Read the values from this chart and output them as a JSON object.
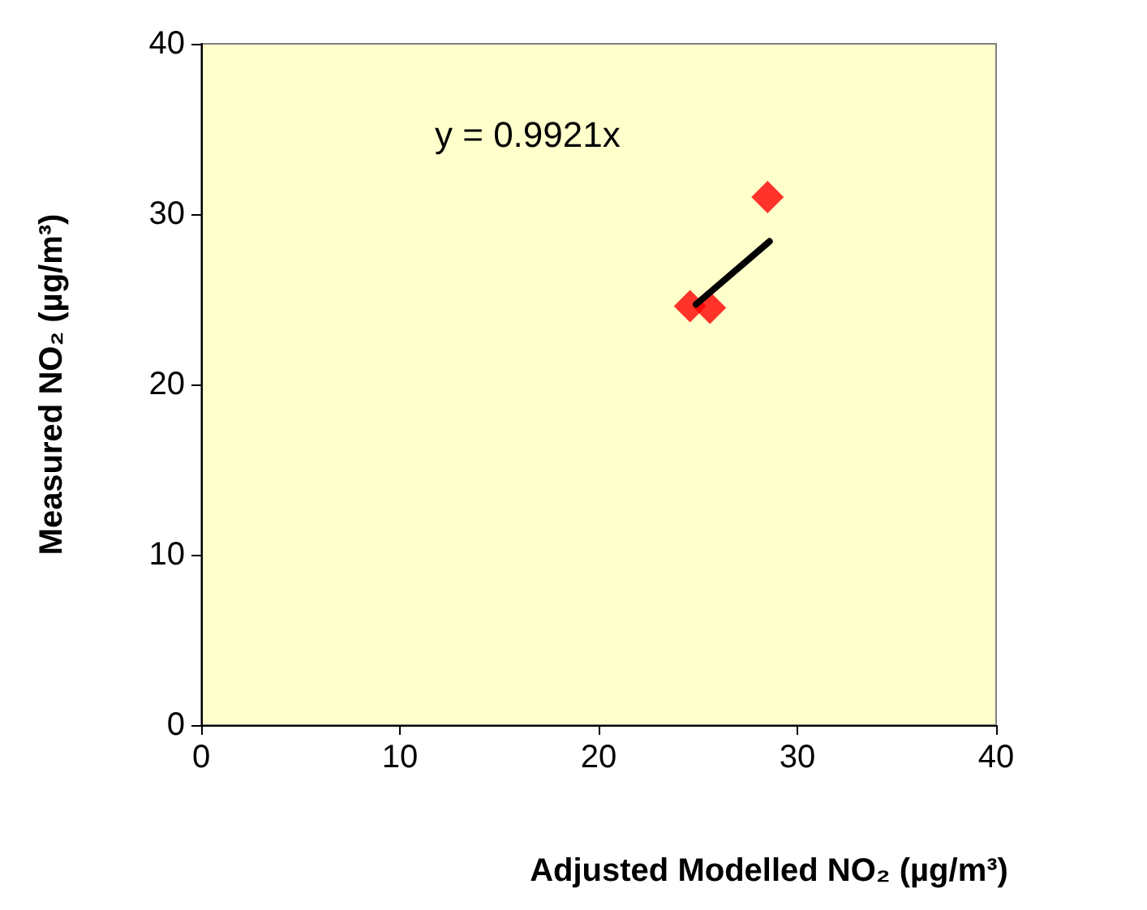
{
  "chart_data": {
    "type": "scatter",
    "xlabel": "Adjusted Modelled NO₂ (µg/m³)",
    "ylabel": "Measured NO₂ (µg/m³)",
    "annotations": [
      "y = 0.9921x"
    ],
    "xlim": [
      0,
      40
    ],
    "ylim": [
      0,
      40
    ],
    "xticks": [
      0,
      10,
      20,
      30,
      40
    ],
    "yticks": [
      0,
      10,
      20,
      30,
      40
    ],
    "grid": false,
    "marker": "diamond",
    "series": [
      {
        "color": "#ff0000",
        "x": [
          24.6,
          25.6,
          28.5
        ],
        "values": [
          24.6,
          24.5,
          31.0
        ]
      },
      {
        "type": "line",
        "color": "#000000",
        "marker": "none",
        "line_style": "solid",
        "x": [
          24.9,
          28.6
        ],
        "values": [
          24.7,
          28.4
        ]
      }
    ]
  }
}
